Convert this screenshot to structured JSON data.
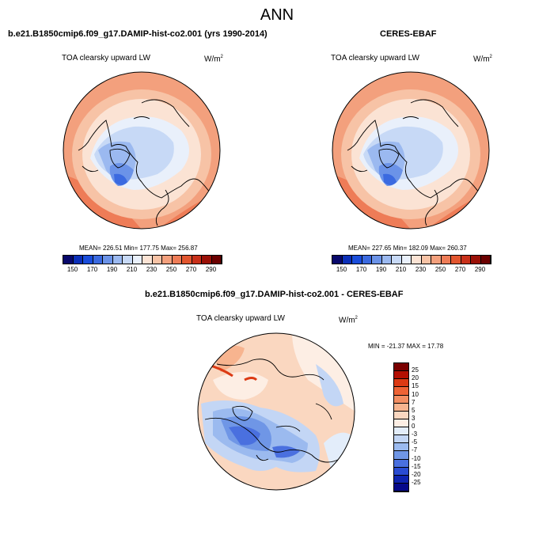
{
  "figure": {
    "title": "ANN",
    "panel_model": {
      "title": "b.e21.B1850cmip6.f09_g17.DAMIP-hist-co2.001 (yrs 1990-2014)",
      "variable": "TOA clearsky upward LW",
      "units": "W/m",
      "units_sup": "2",
      "stats": "MEAN= 226.51  Min= 177.75  Max= 256.87"
    },
    "panel_obs": {
      "title": "CERES-EBAF",
      "variable": "TOA clearsky upward LW",
      "units": "W/m",
      "units_sup": "2",
      "stats": "MEAN= 227.65  Min= 182.09  Max= 260.37"
    },
    "panel_diff": {
      "title": "b.e21.B1850cmip6.f09_g17.DAMIP-hist-co2.001 - CERES-EBAF",
      "variable": "TOA clearsky upward LW",
      "units": "W/m",
      "units_sup": "2",
      "stats": "MIN = -21.37 MAX =  17.78"
    }
  },
  "colorbar_abs": {
    "colors": [
      "#08086b",
      "#0b2fb8",
      "#1a4ddb",
      "#3b6ae0",
      "#6b93e8",
      "#9bb9f0",
      "#c7d9f6",
      "#e9f0fb",
      "#fbe3d4",
      "#f7c3a6",
      "#f3a07d",
      "#ee7c57",
      "#e2562f",
      "#c8301a",
      "#9a1007",
      "#6b0000"
    ],
    "labels": [
      "150",
      "170",
      "190",
      "210",
      "230",
      "250",
      "270",
      "290"
    ]
  },
  "colorbar_diff": {
    "colors": [
      "#7a0000",
      "#b40f02",
      "#dc3a14",
      "#ee6335",
      "#f38e62",
      "#f7b48f",
      "#fad7c0",
      "#fdeee4",
      "#e3edfa",
      "#c3d6f5",
      "#9bbaef",
      "#6f96e6",
      "#4a70df",
      "#2a4cd2",
      "#0f24b0",
      "#06098a"
    ],
    "labels": [
      "25",
      "20",
      "15",
      "10",
      "7",
      "5",
      "3",
      "0",
      "-3",
      "-5",
      "-7",
      "-10",
      "-15",
      "-20",
      "-25"
    ]
  },
  "map_colors": {
    "deep_blue": "#2e52d6",
    "mid_blue": "#6b93e8",
    "light_blue": "#c7d9f6",
    "pale_blue": "#e3edfa",
    "pale": "#fdeee4",
    "peach": "#f7c3a6",
    "salmon": "#f3a07d",
    "orange": "#ee7c57",
    "red": "#e2562f"
  }
}
